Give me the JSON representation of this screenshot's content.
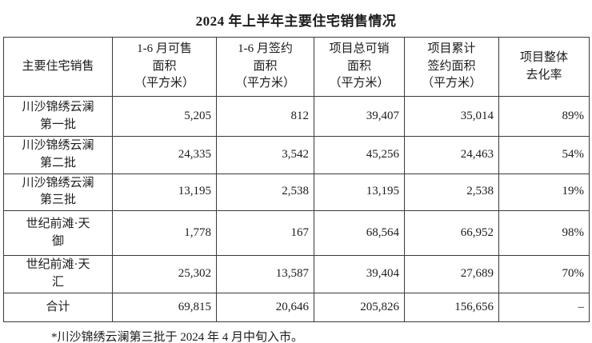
{
  "title": "2024 年上半年主要住宅销售情况",
  "table": {
    "headers": [
      "主要住宅销售",
      "1-6 月可售\n面积\n（平方米）",
      "1-6 月签约\n面积\n（平方米）",
      "项目总可销\n面积\n（平方米）",
      "项目累计\n签约面积\n（平方米）",
      "项目整体\n去化率"
    ],
    "rows": [
      {
        "name": "川沙锦绣云澜\n第一批",
        "cells": [
          "5,205",
          "812",
          "39,407",
          "35,014",
          "89%"
        ]
      },
      {
        "name": "川沙锦绣云澜\n第二批",
        "cells": [
          "24,335",
          "3,542",
          "45,256",
          "24,463",
          "54%"
        ]
      },
      {
        "name": "川沙锦绣云澜\n第三批",
        "cells": [
          "13,195",
          "2,538",
          "13,195",
          "2,538",
          "19%"
        ]
      },
      {
        "name": "世纪前滩·天\n御",
        "cells": [
          "1,778",
          "167",
          "68,564",
          "66,952",
          "98%"
        ]
      },
      {
        "name": "世纪前滩·天\n汇",
        "cells": [
          "25,302",
          "13,587",
          "39,404",
          "27,689",
          "70%"
        ]
      }
    ],
    "total": {
      "label": "合计",
      "cells": [
        "69,815",
        "20,646",
        "205,826",
        "156,656",
        "–"
      ]
    }
  },
  "footnote": "*川沙锦绣云澜第三批于 2024 年 4 月中旬入市。",
  "colors": {
    "text": "#1c1c1c",
    "border": "#3a3a3a",
    "background": "#ffffff"
  }
}
